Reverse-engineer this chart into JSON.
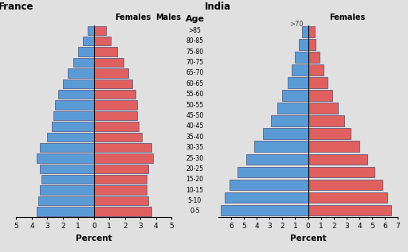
{
  "france_ages_bottom_to_top": [
    "0-5",
    "5-10",
    "10-15",
    "15-20",
    "20-25",
    "25-30",
    "30-35",
    "35-40",
    "40-45",
    "45-50",
    "50-55",
    "55-60",
    "60-65",
    "65-70",
    "70-75",
    "75-80",
    "80-85",
    ">85"
  ],
  "france_males_bottom_to_top": [
    3.7,
    3.6,
    3.5,
    3.4,
    3.5,
    3.7,
    3.5,
    3.0,
    2.7,
    2.6,
    2.5,
    2.3,
    2.0,
    1.7,
    1.3,
    1.0,
    0.7,
    0.4
  ],
  "france_females_bottom_to_top": [
    3.7,
    3.5,
    3.4,
    3.4,
    3.5,
    3.8,
    3.7,
    3.1,
    2.9,
    2.8,
    2.8,
    2.7,
    2.5,
    2.2,
    1.9,
    1.5,
    1.1,
    0.8
  ],
  "india_ages_bottom_to_top": [
    "0-5",
    "5-10",
    "10-15",
    "15-20",
    "20-25",
    "25-30",
    "30-35",
    "35-40",
    "40-45",
    "45-50",
    "50-55",
    "55-60",
    "60-65",
    "65-70",
    ">70"
  ],
  "india_males_bottom_to_top": [
    6.8,
    6.5,
    6.1,
    5.5,
    4.8,
    4.2,
    3.5,
    2.9,
    2.4,
    2.0,
    1.6,
    1.3,
    1.0,
    0.7,
    0.5
  ],
  "india_females_bottom_to_top": [
    6.5,
    6.2,
    5.8,
    5.2,
    4.6,
    4.0,
    3.3,
    2.8,
    2.3,
    1.9,
    1.5,
    1.2,
    0.9,
    0.6,
    0.5
  ],
  "male_color": "#5b9bd5",
  "female_color": "#e06060",
  "bg_color": "#e0e0e0",
  "bar_edge_color": "#333366",
  "title_france": "France",
  "title_india": "India",
  "age_label": "Age",
  "xlabel": "Percent",
  "france_xlim": 5,
  "india_xlim": 7,
  "france_xticks": [
    -5,
    -4,
    -3,
    -2,
    -1,
    0,
    1,
    2,
    3,
    4,
    5
  ],
  "france_xticklabels": [
    "5",
    "4",
    "3",
    "2",
    "1",
    "0",
    "1",
    "2",
    "3",
    "4",
    "5"
  ],
  "india_xticks": [
    -6,
    -5,
    -4,
    -3,
    -2,
    -1,
    0,
    1,
    2,
    3,
    4,
    5,
    6,
    7
  ],
  "india_xticklabels": [
    "6",
    "5",
    "4",
    "3",
    "2",
    "1",
    "0",
    "1",
    "2",
    "3",
    "4",
    "5",
    "6",
    "7"
  ]
}
